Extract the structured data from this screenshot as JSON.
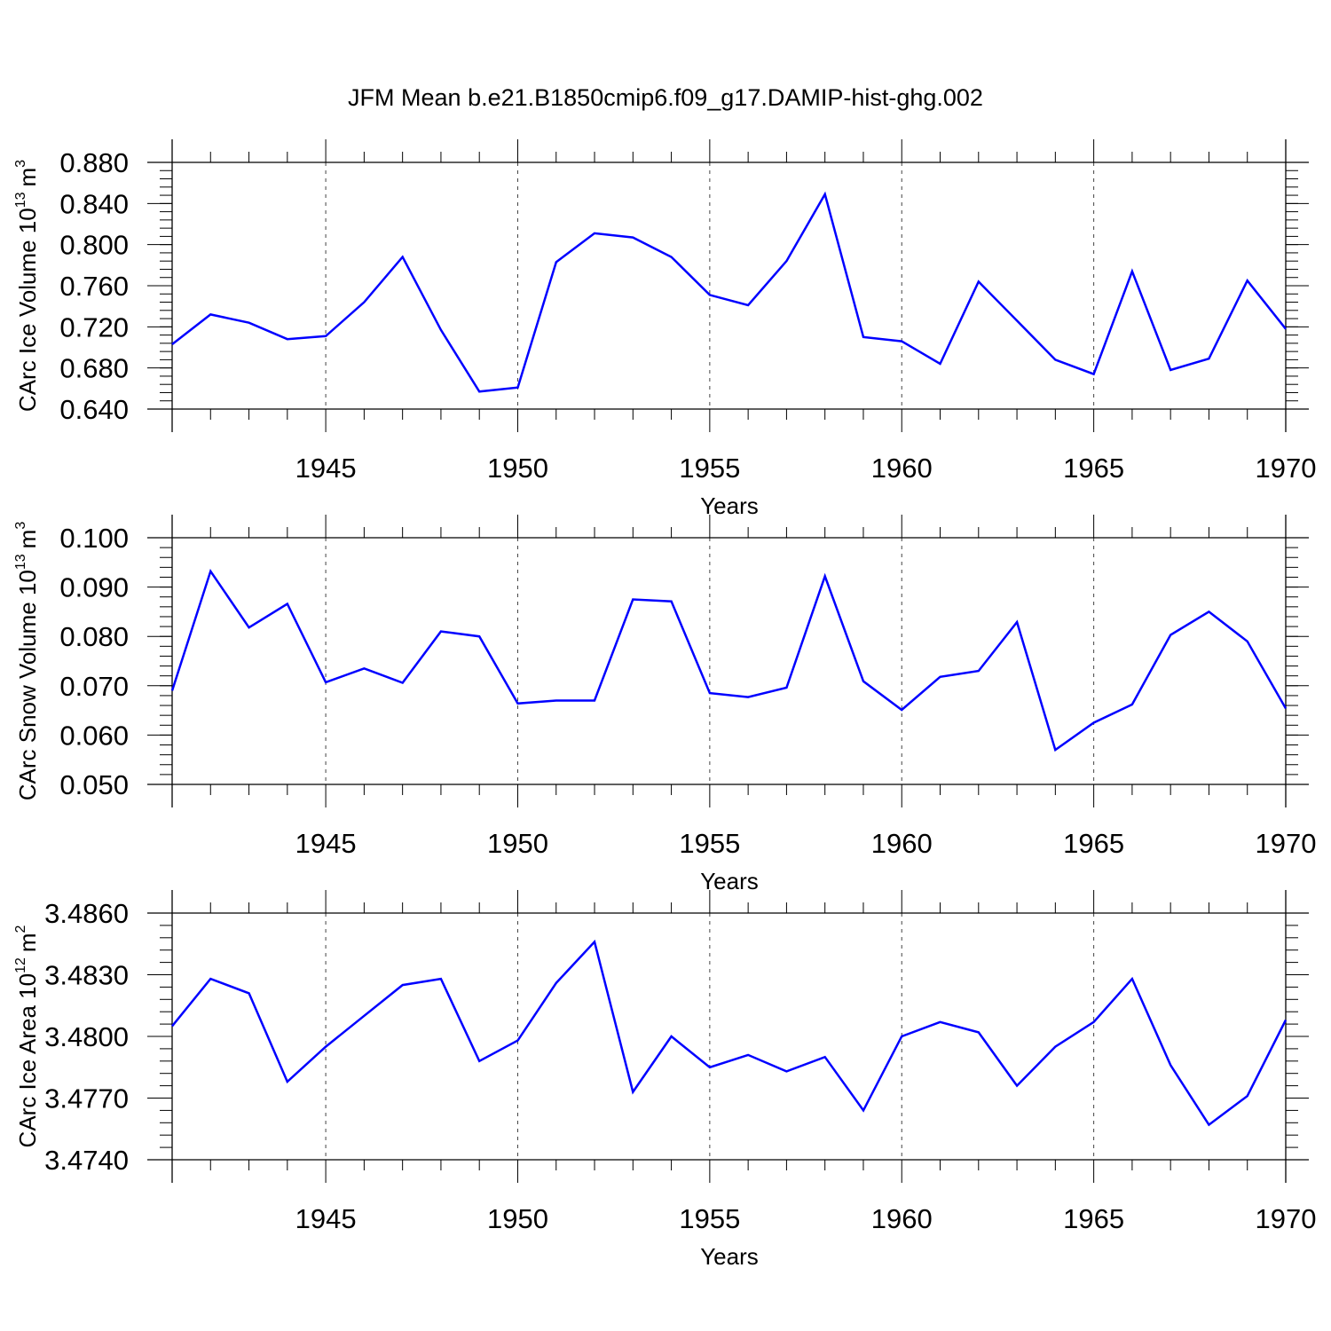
{
  "title": "JFM Mean b.e21.B1850cmip6.f09_g17.DAMIP-hist-ghg.002",
  "chart_data": [
    {
      "type": "line",
      "name": "ice-volume",
      "ylabel_main": "CArc Ice Volume 10",
      "ylabel_exp": "13",
      "ylabel_unit": "m",
      "ylabel_unit_exp": "3",
      "xlabel": "Years",
      "xlim": [
        1941,
        1970
      ],
      "ylim": [
        0.64,
        0.88
      ],
      "yticks": [
        0.64,
        0.68,
        0.72,
        0.76,
        0.8,
        0.84,
        0.88
      ],
      "ytick_labels": [
        "0.640",
        "0.680",
        "0.720",
        "0.760",
        "0.800",
        "0.840",
        "0.880"
      ],
      "yminor_step": 0.008,
      "xticks": [
        1945,
        1950,
        1955,
        1960,
        1965,
        1970
      ],
      "xtick_labels": [
        "1945",
        "1950",
        "1955",
        "1960",
        "1965",
        "1970"
      ],
      "grid_x": true,
      "x": [
        1941,
        1942,
        1943,
        1944,
        1945,
        1946,
        1947,
        1948,
        1949,
        1950,
        1951,
        1952,
        1953,
        1954,
        1955,
        1956,
        1957,
        1958,
        1959,
        1960,
        1961,
        1962,
        1963,
        1964,
        1965,
        1966,
        1967,
        1968,
        1969,
        1970
      ],
      "values": [
        0.703,
        0.732,
        0.724,
        0.708,
        0.711,
        0.744,
        0.788,
        0.717,
        0.657,
        0.661,
        0.783,
        0.811,
        0.807,
        0.788,
        0.751,
        0.741,
        0.784,
        0.849,
        0.71,
        0.706,
        0.684,
        0.764,
        0.726,
        0.688,
        0.674,
        0.774,
        0.678,
        0.689,
        0.765,
        0.718
      ]
    },
    {
      "type": "line",
      "name": "snow-volume",
      "ylabel_main": "CArc Snow Volume 10",
      "ylabel_exp": "13",
      "ylabel_unit": "m",
      "ylabel_unit_exp": "3",
      "xlabel": "Years",
      "xlim": [
        1941,
        1970
      ],
      "ylim": [
        0.05,
        0.1
      ],
      "yticks": [
        0.05,
        0.06,
        0.07,
        0.08,
        0.09,
        0.1
      ],
      "ytick_labels": [
        "0.050",
        "0.060",
        "0.070",
        "0.080",
        "0.090",
        "0.100"
      ],
      "yminor_step": 0.002,
      "xticks": [
        1945,
        1950,
        1955,
        1960,
        1965,
        1970
      ],
      "xtick_labels": [
        "1945",
        "1950",
        "1955",
        "1960",
        "1965",
        "1970"
      ],
      "grid_x": true,
      "x": [
        1941,
        1942,
        1943,
        1944,
        1945,
        1946,
        1947,
        1948,
        1949,
        1950,
        1951,
        1952,
        1953,
        1954,
        1955,
        1956,
        1957,
        1958,
        1959,
        1960,
        1961,
        1962,
        1963,
        1964,
        1965,
        1966,
        1967,
        1968,
        1969,
        1970
      ],
      "values": [
        0.069,
        0.0932,
        0.0818,
        0.0866,
        0.0707,
        0.0735,
        0.0706,
        0.081,
        0.08,
        0.0664,
        0.067,
        0.067,
        0.0875,
        0.0871,
        0.0685,
        0.0677,
        0.0696,
        0.0922,
        0.0709,
        0.0651,
        0.0718,
        0.073,
        0.0829,
        0.057,
        0.0625,
        0.0662,
        0.0803,
        0.085,
        0.079,
        0.0654
      ]
    },
    {
      "type": "line",
      "name": "ice-area",
      "ylabel_main": "CArc Ice Area 10",
      "ylabel_exp": "12",
      "ylabel_unit": "m",
      "ylabel_unit_exp": "2",
      "xlabel": "Years",
      "xlim": [
        1941,
        1970
      ],
      "ylim": [
        3.474,
        3.486
      ],
      "yticks": [
        3.474,
        3.477,
        3.48,
        3.483,
        3.486
      ],
      "ytick_labels": [
        "3.4740",
        "3.4770",
        "3.4800",
        "3.4830",
        "3.4860"
      ],
      "yminor_step": 0.0006,
      "xticks": [
        1945,
        1950,
        1955,
        1960,
        1965,
        1970
      ],
      "xtick_labels": [
        "1945",
        "1950",
        "1955",
        "1960",
        "1965",
        "1970"
      ],
      "grid_x": true,
      "x": [
        1941,
        1942,
        1943,
        1944,
        1945,
        1946,
        1947,
        1948,
        1949,
        1950,
        1951,
        1952,
        1953,
        1954,
        1955,
        1956,
        1957,
        1958,
        1959,
        1960,
        1961,
        1962,
        1963,
        1964,
        1965,
        1966,
        1967,
        1968,
        1969,
        1970
      ],
      "values": [
        3.4805,
        3.4828,
        3.4821,
        3.4778,
        3.4795,
        3.481,
        3.4825,
        3.4828,
        3.4788,
        3.4798,
        3.4826,
        3.4846,
        3.4773,
        3.48,
        3.4785,
        3.4791,
        3.4783,
        3.479,
        3.4764,
        3.48,
        3.4807,
        3.4802,
        3.4776,
        3.4795,
        3.4807,
        3.4828,
        3.4786,
        3.4757,
        3.4771,
        3.4808
      ]
    }
  ]
}
